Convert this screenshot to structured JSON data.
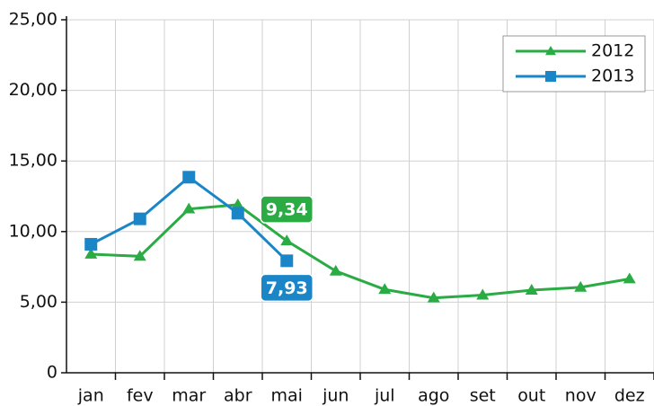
{
  "chart_data": {
    "type": "line",
    "categories": [
      "jan",
      "fev",
      "mar",
      "abr",
      "mai",
      "jun",
      "jul",
      "ago",
      "set",
      "out",
      "nov",
      "dez"
    ],
    "series": [
      {
        "name": "2012",
        "color": "#2aab44",
        "marker": "triangle",
        "values": [
          8.4,
          8.25,
          11.6,
          11.9,
          9.34,
          7.2,
          5.9,
          5.3,
          5.5,
          5.85,
          6.05,
          6.65
        ],
        "value_labels": [
          null,
          null,
          null,
          null,
          "9,34",
          null,
          null,
          null,
          null,
          null,
          null,
          null
        ]
      },
      {
        "name": "2013",
        "color": "#1a86c8",
        "marker": "square",
        "values": [
          9.1,
          10.9,
          13.85,
          11.3,
          7.93,
          null,
          null,
          null,
          null,
          null,
          null,
          null
        ],
        "value_labels": [
          null,
          null,
          null,
          null,
          "7,93",
          null,
          null,
          null,
          null,
          null,
          null,
          null
        ]
      }
    ],
    "ylim": [
      0,
      25
    ],
    "yticks": [
      0,
      {
        "value": 5,
        "label": "5,00"
      },
      {
        "value": 10,
        "label": "10,00"
      },
      {
        "value": 15,
        "label": "15,00"
      },
      {
        "value": 20,
        "label": "20,00"
      },
      {
        "value": 25,
        "label": "25,00"
      }
    ],
    "grid": true,
    "legend": "top-right"
  }
}
